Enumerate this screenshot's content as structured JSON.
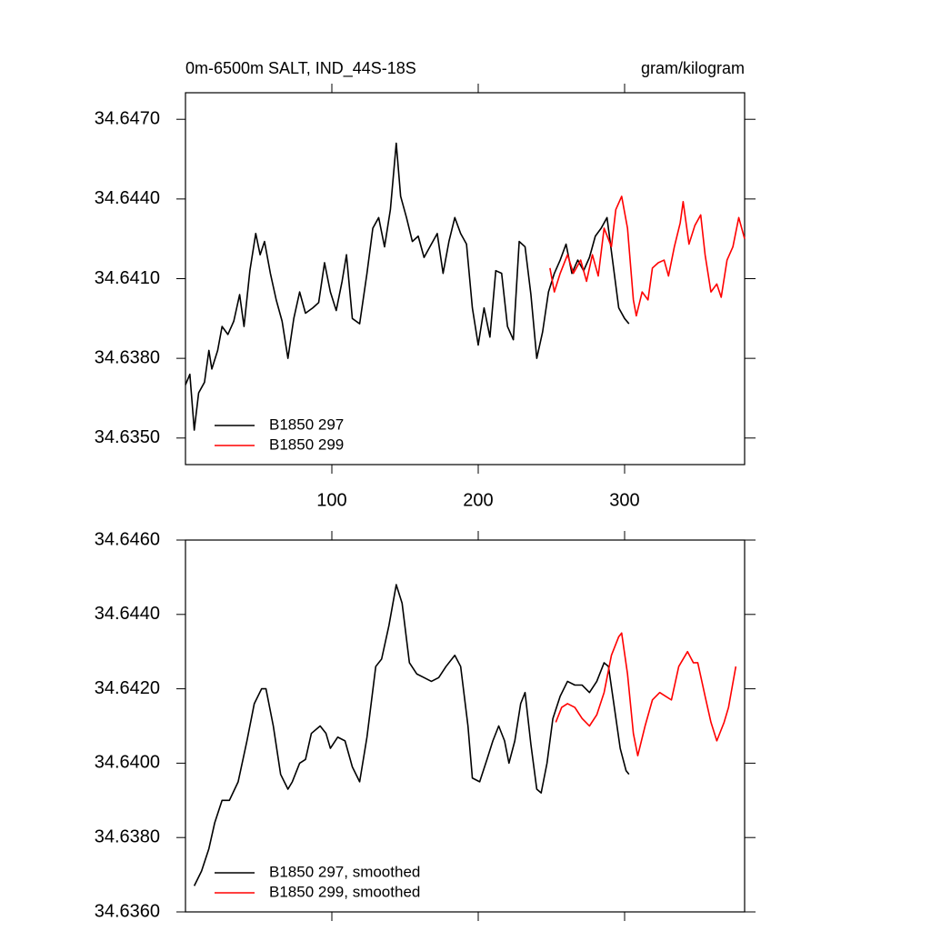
{
  "chart_data": [
    {
      "type": "line",
      "title": "0m-6500m SALT, IND_44S-18S",
      "units": "gram/kilogram",
      "xlim": [
        0,
        382
      ],
      "xticks": [
        100,
        200,
        300
      ],
      "xtick_labels": true,
      "ylim": [
        34.634,
        34.648
      ],
      "yticks": [
        {
          "value": 34.635,
          "label": "34.6350"
        },
        {
          "value": 34.638,
          "label": "34.6380"
        },
        {
          "value": 34.641,
          "label": "34.6410"
        },
        {
          "value": 34.644,
          "label": "34.6440"
        },
        {
          "value": 34.647,
          "label": "34.6470"
        }
      ],
      "legend": "lower left",
      "series": [
        {
          "name": "B1850 297",
          "color": "#000000",
          "x": [
            0,
            3,
            6,
            9,
            13,
            16,
            18,
            22,
            25,
            29,
            33,
            37,
            40,
            44,
            48,
            51,
            54,
            58,
            62,
            66,
            70,
            74,
            78,
            82,
            87,
            91,
            95,
            99,
            103,
            107,
            110,
            114,
            119,
            124,
            128,
            132,
            136,
            140,
            144,
            147,
            151,
            155,
            159,
            163,
            168,
            172,
            176,
            180,
            184,
            188,
            192,
            196,
            200,
            204,
            208,
            212,
            216,
            220,
            224,
            228,
            232,
            236,
            240,
            244,
            248,
            252,
            256,
            260,
            264,
            268,
            272,
            276,
            280,
            284,
            288,
            292,
            296,
            300,
            303
          ],
          "values": [
            34.637,
            34.6374,
            34.6353,
            34.6367,
            34.6371,
            34.6383,
            34.6376,
            34.6383,
            34.6392,
            34.6389,
            34.6394,
            34.6404,
            34.6392,
            34.6413,
            34.6427,
            34.6419,
            34.6424,
            34.6412,
            34.6402,
            34.6394,
            34.638,
            34.6395,
            34.6405,
            34.6397,
            34.6399,
            34.6401,
            34.6416,
            34.6405,
            34.6398,
            34.6409,
            34.6419,
            34.6395,
            34.6393,
            34.6412,
            34.6429,
            34.6433,
            34.6422,
            34.6436,
            34.6461,
            34.6441,
            34.6433,
            34.6424,
            34.6426,
            34.6418,
            34.6423,
            34.6427,
            34.6412,
            34.6424,
            34.6433,
            34.6427,
            34.6423,
            34.6399,
            34.6385,
            34.6399,
            34.6388,
            34.6413,
            34.6412,
            34.6392,
            34.6387,
            34.6424,
            34.6422,
            34.6404,
            34.638,
            34.639,
            34.6405,
            34.6412,
            34.6417,
            34.6423,
            34.6412,
            34.6417,
            34.6413,
            34.6418,
            34.6426,
            34.6429,
            34.6433,
            34.6416,
            34.6399,
            34.6395,
            34.6393
          ]
        },
        {
          "name": "B1850 299",
          "color": "#ff0000",
          "x": [
            249,
            252,
            256,
            261,
            265,
            270,
            274,
            278,
            282,
            286,
            291,
            294,
            298,
            302,
            306,
            308,
            312,
            316,
            319,
            323,
            327,
            330,
            334,
            338,
            340,
            344,
            348,
            352,
            355,
            359,
            363,
            366,
            370,
            374,
            378,
            382
          ],
          "values": [
            34.6414,
            34.6405,
            34.6412,
            34.6419,
            34.6412,
            34.6417,
            34.6409,
            34.6419,
            34.6411,
            34.6429,
            34.6422,
            34.6436,
            34.6441,
            34.6429,
            34.6402,
            34.6396,
            34.6405,
            34.6402,
            34.6414,
            34.6416,
            34.6417,
            34.6411,
            34.6422,
            34.6431,
            34.6439,
            34.6423,
            34.643,
            34.6434,
            34.6419,
            34.6405,
            34.6408,
            34.6403,
            34.6417,
            34.6422,
            34.6433,
            34.6425
          ]
        }
      ]
    },
    {
      "type": "line",
      "xlim": [
        0,
        382
      ],
      "xticks": [
        100,
        200,
        300
      ],
      "xtick_labels": false,
      "ylim": [
        34.636,
        34.646
      ],
      "yticks": [
        {
          "value": 34.636,
          "label": "34.6360"
        },
        {
          "value": 34.638,
          "label": "34.6380"
        },
        {
          "value": 34.64,
          "label": "34.6400"
        },
        {
          "value": 34.642,
          "label": "34.6420"
        },
        {
          "value": 34.644,
          "label": "34.6440"
        },
        {
          "value": 34.646,
          "label": "34.6460"
        }
      ],
      "legend": "lower left",
      "series": [
        {
          "name": "B1850 297, smoothed",
          "color": "#000000",
          "x": [
            6,
            11,
            16,
            20,
            25,
            30,
            36,
            42,
            47,
            52,
            55,
            60,
            65,
            70,
            73,
            78,
            82,
            86,
            92,
            96,
            99,
            104,
            109,
            114,
            119,
            124,
            130,
            134,
            139,
            144,
            148,
            153,
            158,
            163,
            168,
            173,
            178,
            184,
            188,
            193,
            196,
            201,
            206,
            210,
            214,
            218,
            221,
            225,
            229,
            232,
            236,
            240,
            243,
            247,
            251,
            256,
            261,
            266,
            271,
            276,
            281,
            286,
            289,
            293,
            297,
            301,
            303
          ],
          "values": [
            34.6367,
            34.6371,
            34.6377,
            34.6384,
            34.639,
            34.639,
            34.6395,
            34.6406,
            34.6416,
            34.642,
            34.642,
            34.641,
            34.6397,
            34.6393,
            34.6395,
            34.64,
            34.6401,
            34.6408,
            34.641,
            34.6408,
            34.6404,
            34.6407,
            34.6406,
            34.6399,
            34.6395,
            34.6407,
            34.6426,
            34.6428,
            34.6437,
            34.6448,
            34.6443,
            34.6427,
            34.6424,
            34.6423,
            34.6422,
            34.6423,
            34.6426,
            34.6429,
            34.6426,
            34.641,
            34.6396,
            34.6395,
            34.6401,
            34.6406,
            34.641,
            34.6406,
            34.64,
            34.6406,
            34.6416,
            34.6419,
            34.6405,
            34.6393,
            34.6392,
            34.64,
            34.6412,
            34.6418,
            34.6422,
            34.6421,
            34.6421,
            34.6419,
            34.6422,
            34.6427,
            34.6426,
            34.6415,
            34.6404,
            34.6398,
            34.6397
          ]
        },
        {
          "name": "B1850 299, smoothed",
          "color": "#ff0000",
          "x": [
            253,
            257,
            261,
            266,
            271,
            276,
            281,
            286,
            291,
            296,
            298,
            302,
            306,
            309,
            314,
            319,
            324,
            328,
            332,
            337,
            343,
            347,
            350,
            355,
            359,
            363,
            368,
            371,
            376
          ],
          "values": [
            34.6411,
            34.6415,
            34.6416,
            34.6415,
            34.6412,
            34.641,
            34.6413,
            34.6419,
            34.6429,
            34.6434,
            34.6435,
            34.6424,
            34.6408,
            34.6402,
            34.641,
            34.6417,
            34.6419,
            34.6418,
            34.6417,
            34.6426,
            34.643,
            34.6427,
            34.6427,
            34.6418,
            34.6411,
            34.6406,
            34.6411,
            34.6415,
            34.6426
          ]
        }
      ]
    }
  ]
}
